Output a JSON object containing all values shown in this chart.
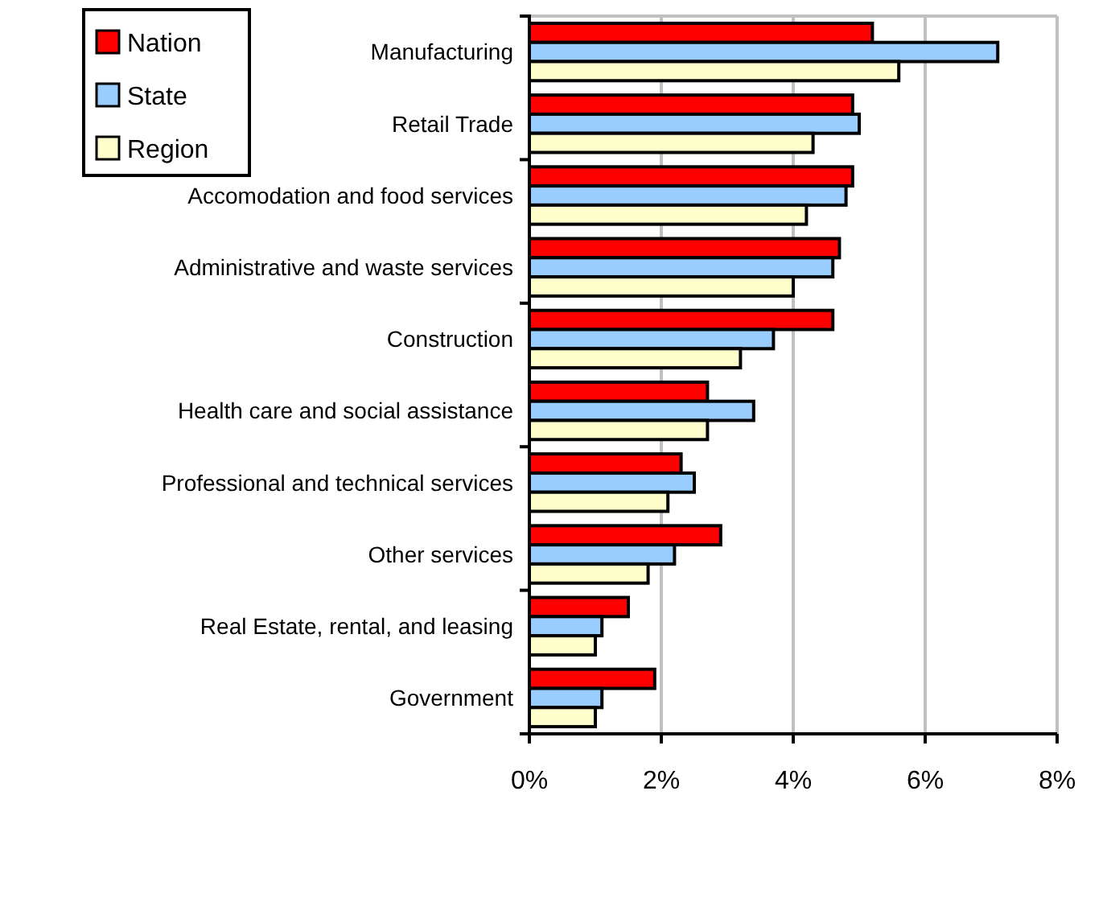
{
  "chart_data": {
    "type": "bar",
    "orientation": "horizontal",
    "categories": [
      "Manufacturing",
      "Retail Trade",
      "Accomodation and food services",
      "Administrative and waste services",
      "Construction",
      "Health care and social assistance",
      "Professional and technical services",
      "Other services",
      "Real Estate, rental, and leasing",
      "Government"
    ],
    "series": [
      {
        "name": "Nation",
        "color": "#ff0000",
        "values": [
          5.2,
          4.9,
          4.9,
          4.7,
          4.6,
          2.7,
          2.3,
          2.9,
          1.5,
          1.9
        ]
      },
      {
        "name": "State",
        "color": "#99ccff",
        "values": [
          7.1,
          5.0,
          4.8,
          4.6,
          3.7,
          3.4,
          2.5,
          2.2,
          1.1,
          1.1
        ]
      },
      {
        "name": "Region",
        "color": "#ffffcc",
        "values": [
          5.6,
          4.3,
          4.2,
          4.0,
          3.2,
          2.7,
          2.1,
          1.8,
          1.0,
          1.0
        ]
      }
    ],
    "xlim": [
      0,
      8
    ],
    "xticks": [
      {
        "value": 0,
        "label": "0%"
      },
      {
        "value": 2,
        "label": "2%"
      },
      {
        "value": 4,
        "label": "4%"
      },
      {
        "value": 6,
        "label": "6%"
      },
      {
        "value": 8,
        "label": "8%"
      }
    ],
    "grid": "x",
    "legend": "top left"
  }
}
